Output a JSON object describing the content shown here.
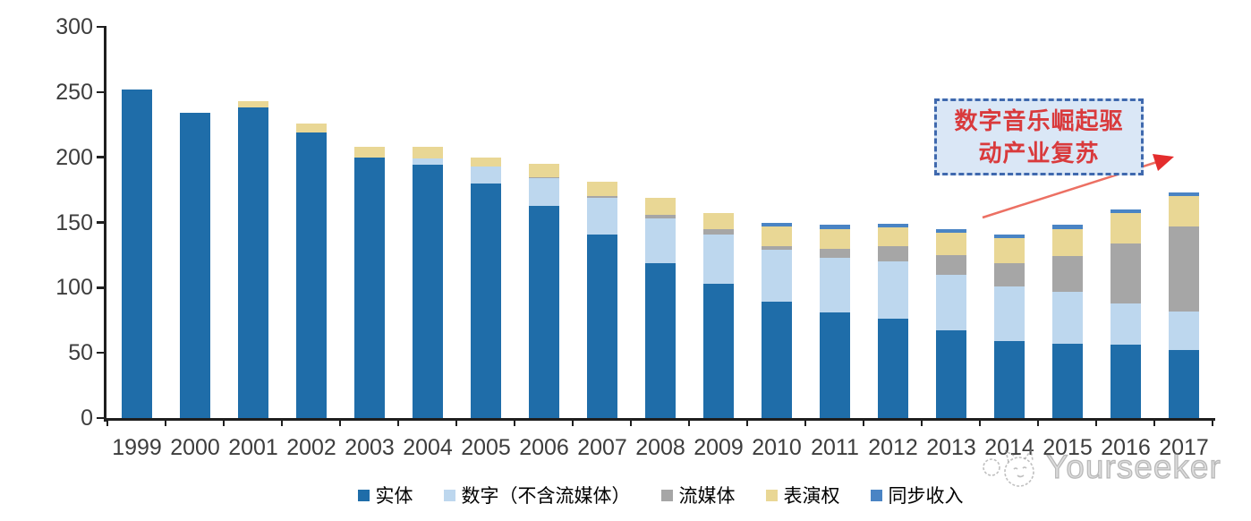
{
  "chart_data": {
    "type": "bar",
    "stacked": true,
    "title": "",
    "xlabel": "",
    "ylabel": "",
    "ylim": [
      0,
      300
    ],
    "y_tick_step": 50,
    "y_ticks": [
      0,
      50,
      100,
      150,
      200,
      250,
      300
    ],
    "grid": false,
    "legend_position": "bottom",
    "categories": [
      1999,
      2000,
      2001,
      2002,
      2003,
      2004,
      2005,
      2006,
      2007,
      2008,
      2009,
      2010,
      2011,
      2012,
      2013,
      2014,
      2015,
      2016,
      2017
    ],
    "series": [
      {
        "key": "physical",
        "name": "实体",
        "color": "#1f6da9",
        "values": [
          252,
          234,
          238,
          219,
          200,
          194,
          180,
          163,
          141,
          119,
          103,
          89,
          81,
          76,
          67,
          59,
          57,
          56,
          52
        ]
      },
      {
        "key": "digital",
        "name": "数字（不含流媒体）",
        "color": "#bdd7ee",
        "values": [
          0,
          0,
          0,
          0,
          0,
          5,
          13,
          21,
          28,
          34,
          38,
          40,
          42,
          44,
          43,
          42,
          40,
          32,
          30
        ]
      },
      {
        "key": "streaming",
        "name": "流媒体",
        "color": "#a6a6a6",
        "values": [
          0,
          0,
          0,
          0,
          0,
          0,
          0,
          1,
          1,
          3,
          4,
          3,
          7,
          12,
          15,
          18,
          27,
          46,
          65
        ]
      },
      {
        "key": "performance",
        "name": "表演权",
        "color": "#e9d795",
        "values": [
          0,
          0,
          5,
          7,
          8,
          9,
          7,
          10,
          11,
          13,
          12,
          15,
          15,
          14,
          17,
          19,
          21,
          23,
          23
        ]
      },
      {
        "key": "sync",
        "name": "同步收入",
        "color": "#4a84c4",
        "values": [
          0,
          0,
          0,
          0,
          0,
          0,
          0,
          0,
          0,
          0,
          0,
          3,
          3,
          3,
          3,
          3,
          3,
          3,
          3
        ]
      }
    ],
    "totals": [
      252,
      234,
      243,
      226,
      208,
      208,
      200,
      195,
      181,
      169,
      157,
      150,
      148,
      149,
      145,
      141,
      148,
      160,
      173
    ]
  },
  "annotation": {
    "text": "数字音乐崛起驱动产业复苏",
    "box_fill": "#dae7f6",
    "border_color": "#3f69ae",
    "text_color": "#d93a3c",
    "arrow_color": "#ec7063",
    "arrowhead_color": "#e42d2d"
  },
  "watermark": {
    "text": "Yourseeker",
    "logo": "cat-logo"
  }
}
